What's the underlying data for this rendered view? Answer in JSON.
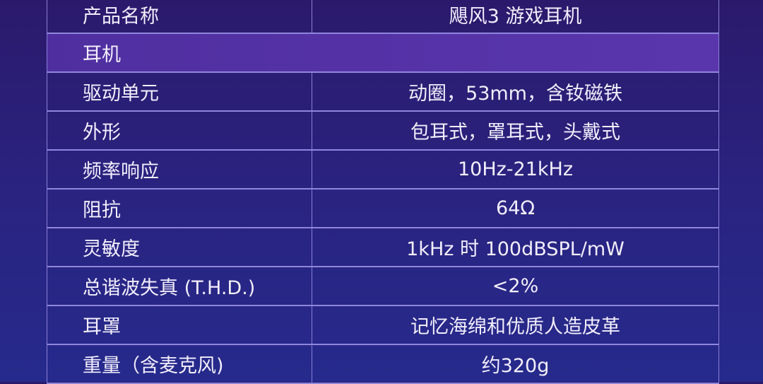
{
  "product_row": {
    "label": "产品名称",
    "value": "飓风3 游戏耳机"
  },
  "section_title": "耳机",
  "specs": [
    {
      "label": "驱动单元",
      "value": "动圈，53mm，含钕磁铁"
    },
    {
      "label": "外形",
      "value": "包耳式，罩耳式，头戴式"
    },
    {
      "label": "频率响应",
      "value": "10Hz-21kHz"
    },
    {
      "label": "阻抗",
      "value": "64Ω"
    },
    {
      "label": "灵敏度",
      "value": "1kHz 时 100dBSPL/mW"
    },
    {
      "label": "总谐波失真 (T.H.D.)",
      "value": "<2%"
    },
    {
      "label": "耳罩",
      "value": "记忆海绵和优质人造皮革"
    },
    {
      "label": "重量（含麦克风)",
      "value": "约320g"
    }
  ],
  "colors": {
    "section_bg": "#5634a8",
    "grid": "#8f86dc"
  }
}
